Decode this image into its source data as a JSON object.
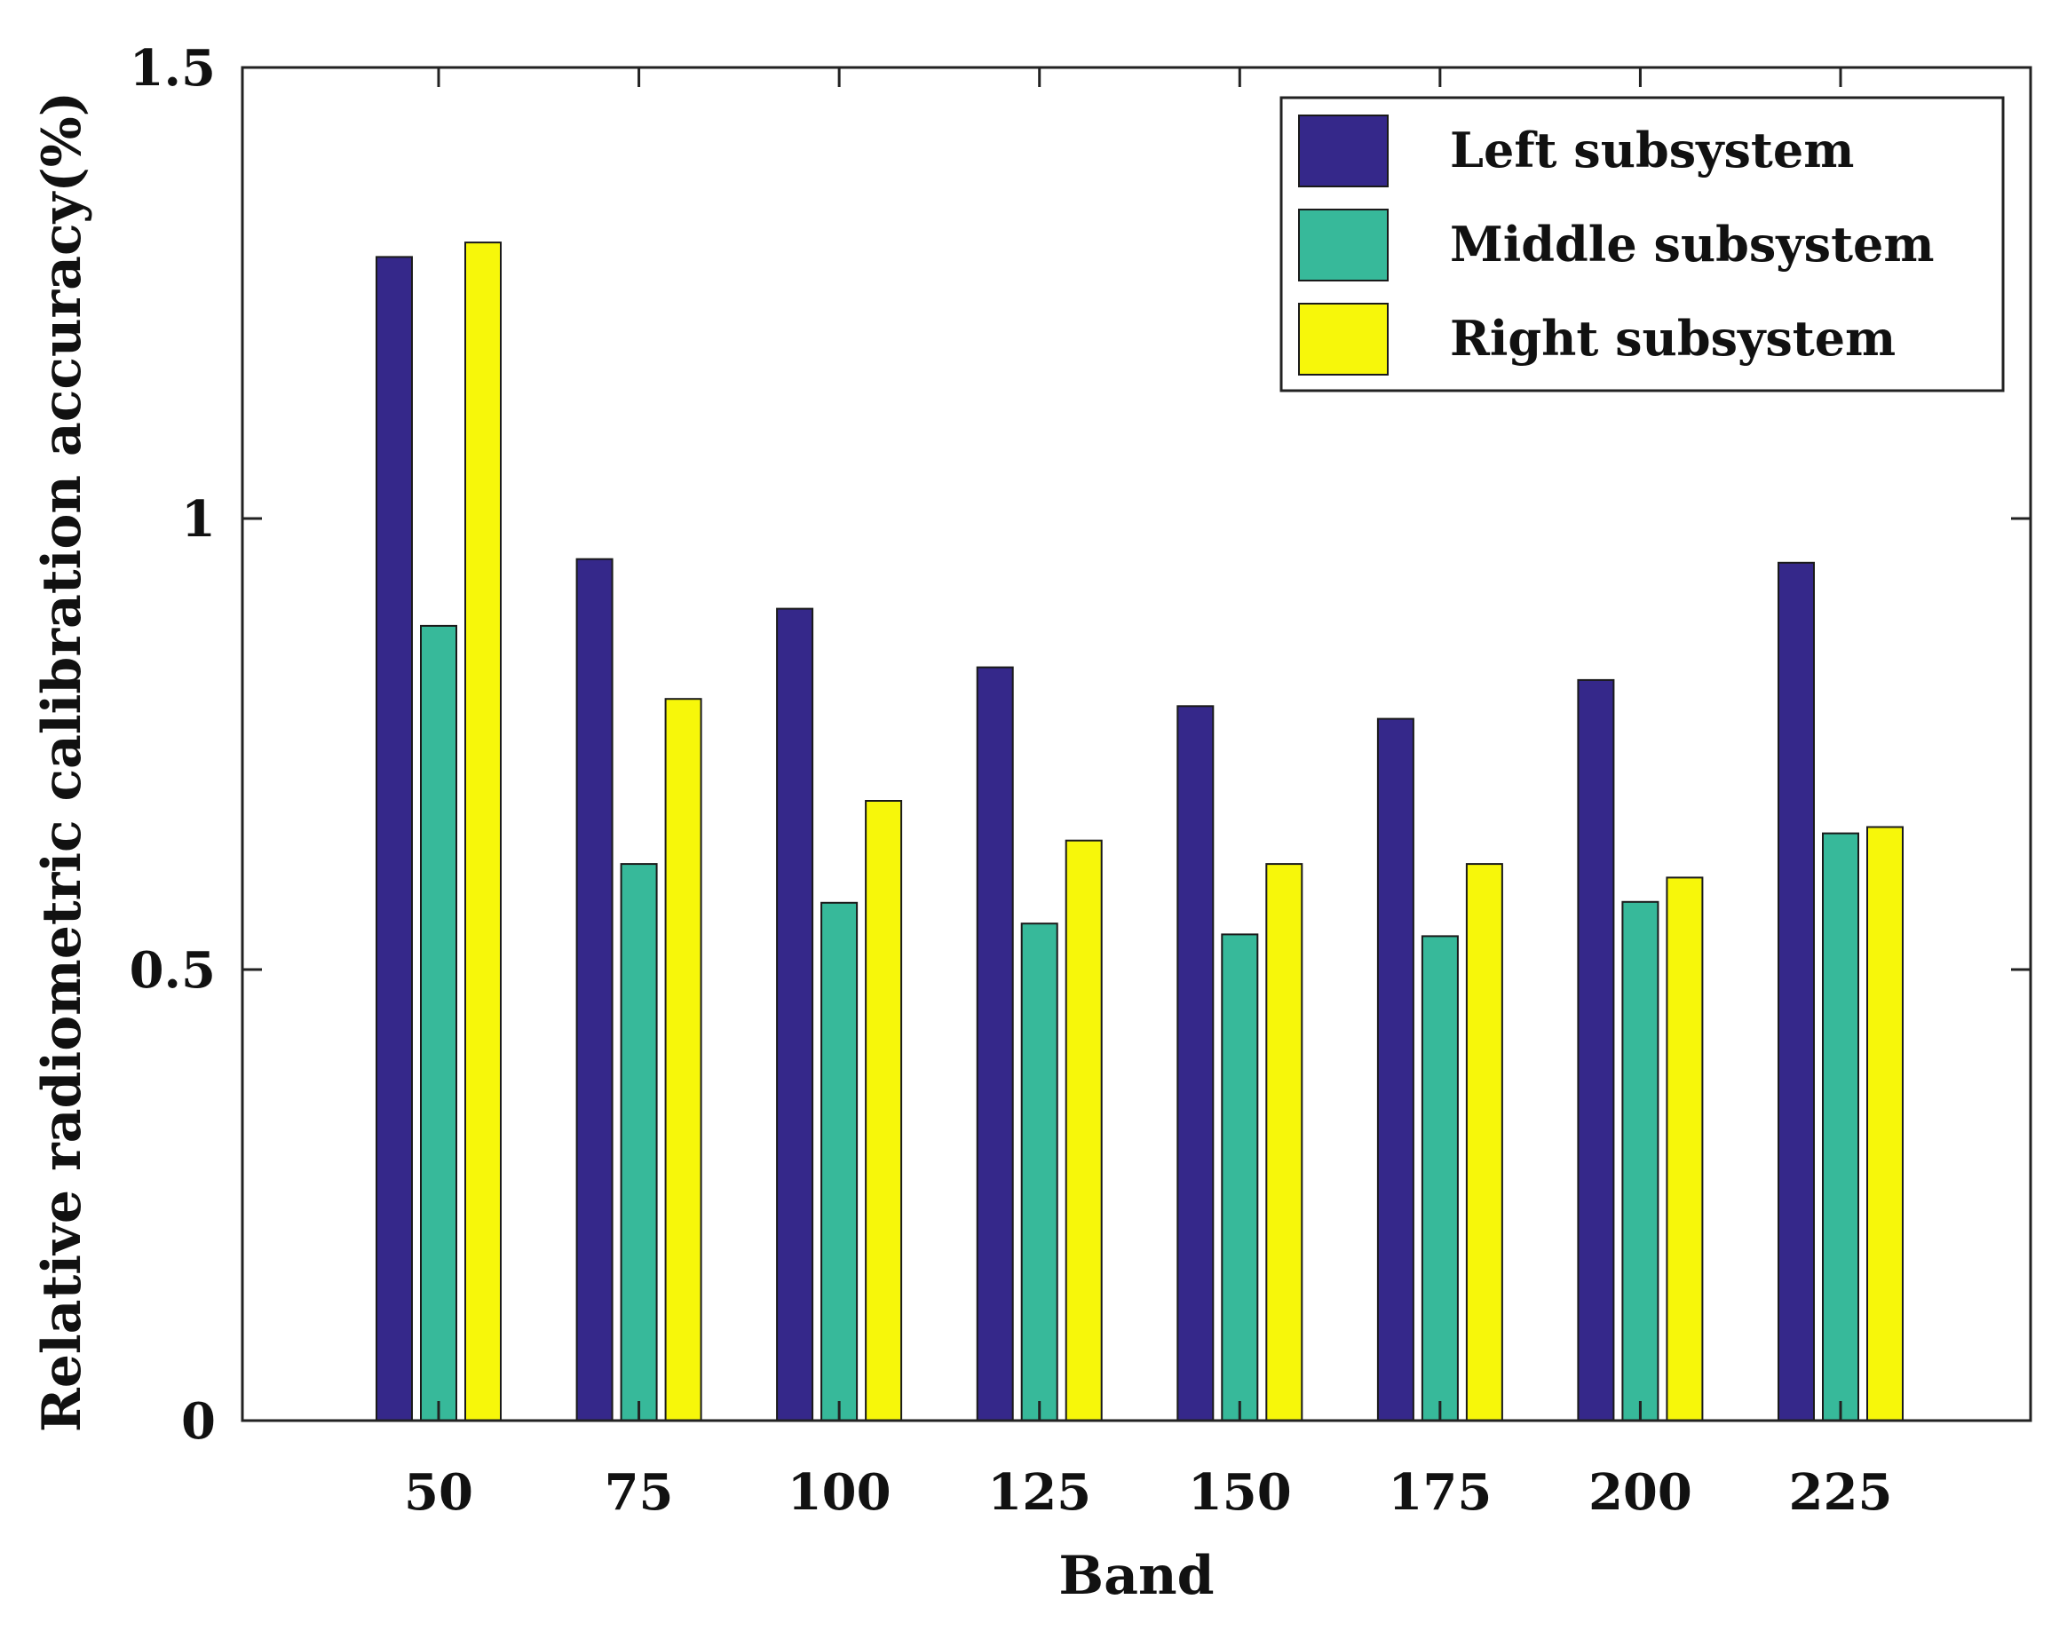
{
  "chart_data": {
    "type": "bar",
    "title": "",
    "xlabel": "Band",
    "ylabel": "Relative radiometric calibration accuracy(%)",
    "categories": [
      "50",
      "75",
      "100",
      "125",
      "150",
      "175",
      "200",
      "225"
    ],
    "ylim": [
      0,
      1.5
    ],
    "yticks": [
      0,
      0.5,
      1,
      1.5
    ],
    "ytick_labels": [
      "0",
      "0.5",
      "1",
      "1.5"
    ],
    "grid": false,
    "legend_position": "top-right",
    "series": [
      {
        "name": "Left subsystem",
        "color": "#35288a",
        "values": [
          1.29,
          0.955,
          0.9,
          0.835,
          0.792,
          0.778,
          0.821,
          0.951
        ]
      },
      {
        "name": "Middle subsystem",
        "color": "#37b99a",
        "values": [
          0.881,
          0.617,
          0.574,
          0.551,
          0.539,
          0.537,
          0.575,
          0.651
        ]
      },
      {
        "name": "Right subsystem",
        "color": "#f7f70a",
        "values": [
          1.306,
          0.8,
          0.687,
          0.643,
          0.617,
          0.617,
          0.602,
          0.658
        ]
      }
    ]
  }
}
